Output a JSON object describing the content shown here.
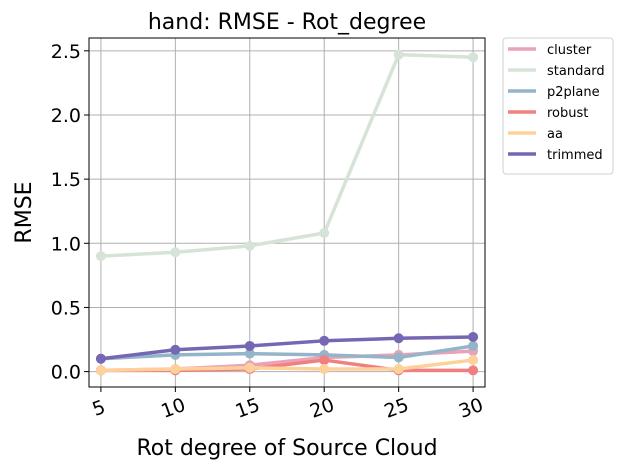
{
  "chart_data": {
    "type": "line",
    "title": "hand: RMSE - Rot_degree",
    "xlabel": "Rot degree of Source Cloud",
    "ylabel": "RMSE",
    "x": [
      5,
      10,
      15,
      20,
      25,
      30
    ],
    "x_tick_labels": [
      "5",
      "10",
      "15",
      "20",
      "25",
      "30"
    ],
    "y_ticks": [
      0.0,
      0.5,
      1.0,
      1.5,
      2.0,
      2.5
    ],
    "y_tick_labels": [
      "0.0",
      "0.5",
      "1.0",
      "1.5",
      "2.0",
      "2.5"
    ],
    "xlim": [
      4.2,
      30.8
    ],
    "ylim": [
      -0.12,
      2.6
    ],
    "grid": true,
    "legend_position": "outside-top-right",
    "series": [
      {
        "name": "cluster",
        "color": "#e8a3b8",
        "values": [
          0.01,
          0.02,
          0.05,
          0.11,
          0.13,
          0.16
        ]
      },
      {
        "name": "standard",
        "color": "#d5e4d6",
        "values": [
          0.9,
          0.93,
          0.98,
          1.08,
          2.47,
          2.45
        ]
      },
      {
        "name": "p2plane",
        "color": "#94b4c9",
        "values": [
          0.1,
          0.13,
          0.14,
          0.13,
          0.11,
          0.2
        ]
      },
      {
        "name": "robust",
        "color": "#f08080",
        "values": [
          0.01,
          0.01,
          0.02,
          0.09,
          0.01,
          0.01
        ]
      },
      {
        "name": "aa",
        "color": "#ffd19a",
        "values": [
          0.01,
          0.02,
          0.03,
          0.02,
          0.02,
          0.09
        ]
      },
      {
        "name": "trimmed",
        "color": "#7567b3",
        "values": [
          0.1,
          0.17,
          0.2,
          0.24,
          0.26,
          0.27
        ]
      }
    ]
  }
}
